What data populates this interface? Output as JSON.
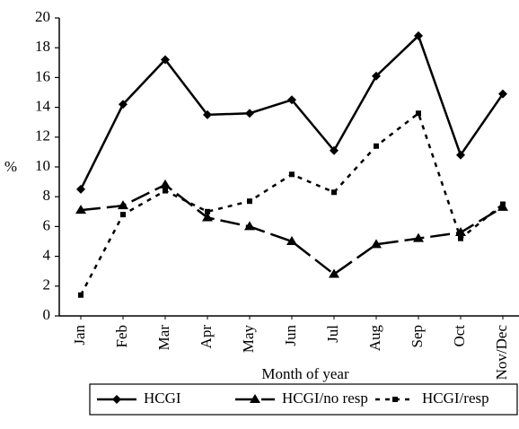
{
  "chart_data": {
    "type": "line",
    "x_label": "Month of year",
    "y_label": "%",
    "categories": [
      "Jan",
      "Feb",
      "Mar",
      "Apr",
      "May",
      "Jun",
      "Jul",
      "Aug",
      "Sep",
      "Oct",
      "Nov/Dec"
    ],
    "series": [
      {
        "name": "HCGI",
        "color": "#000000",
        "marker": "diamond",
        "dash": "solid",
        "values": [
          8.5,
          14.2,
          17.2,
          13.5,
          13.6,
          14.5,
          11.1,
          16.1,
          18.8,
          10.8,
          14.9
        ]
      },
      {
        "name": "HCGI/no resp",
        "color": "#000000",
        "marker": "triangle",
        "dash": "long",
        "values": [
          7.1,
          7.4,
          8.8,
          6.6,
          6.0,
          5.0,
          2.8,
          4.8,
          5.2,
          5.6,
          7.3
        ]
      },
      {
        "name": "HCGI/resp",
        "color": "#000000",
        "marker": "square",
        "dash": "short",
        "values": [
          1.4,
          6.8,
          8.4,
          7.0,
          7.7,
          9.5,
          8.3,
          11.4,
          13.6,
          5.2,
          7.5
        ]
      }
    ],
    "ylim": [
      0,
      20
    ],
    "yticks": [
      0,
      2,
      4,
      6,
      8,
      10,
      12,
      14,
      16,
      18,
      20
    ],
    "grid": false,
    "legend": "bottom"
  }
}
